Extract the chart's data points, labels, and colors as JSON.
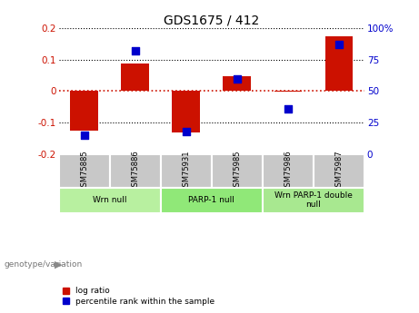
{
  "title": "GDS1675 / 412",
  "samples": [
    "GSM75885",
    "GSM75886",
    "GSM75931",
    "GSM75985",
    "GSM75986",
    "GSM75987"
  ],
  "log_ratios": [
    -0.125,
    0.088,
    -0.13,
    0.048,
    -0.003,
    0.175
  ],
  "percentile_ranks": [
    15,
    82,
    18,
    60,
    36,
    87
  ],
  "ylim_left": [
    -0.2,
    0.2
  ],
  "ylim_right": [
    0,
    100
  ],
  "yticks_left": [
    -0.2,
    -0.1,
    0.0,
    0.1,
    0.2
  ],
  "yticks_right": [
    0,
    25,
    50,
    75,
    100
  ],
  "groups": [
    {
      "label": "Wrn null",
      "start": 0,
      "end": 2
    },
    {
      "label": "PARP-1 null",
      "start": 2,
      "end": 4
    },
    {
      "label": "Wrn PARP-1 double\nnull",
      "start": 4,
      "end": 6
    }
  ],
  "bar_color_red": "#cc1100",
  "bar_color_blue": "#0000cc",
  "bar_width": 0.55,
  "blue_square_size": 40,
  "zero_line_color": "#cc1100",
  "bg_label": "#c8c8c8",
  "group_colors": [
    "#b8f0a0",
    "#90e878",
    "#a8e890"
  ],
  "genotype_label": "genotype/variation"
}
